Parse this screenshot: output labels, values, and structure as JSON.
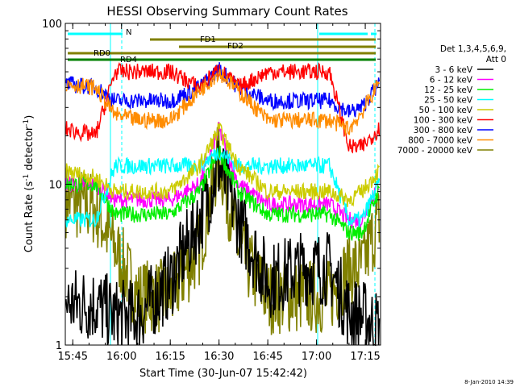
{
  "chart_data": {
    "type": "line",
    "title": "HESSI Observing Summary Count Rates",
    "xlabel": "Start Time (30-Jun-07 15:42:42)",
    "ylabel": "Count Rate (s",
    "ylabel_exp": "-1",
    "ylabel_mid": " detector",
    "ylabel_close": ")",
    "xlim": [
      "15:42:42",
      "17:19:42"
    ],
    "ylim": [
      1,
      100
    ],
    "yscale": "log",
    "xticks": [
      "15:45",
      "16:00",
      "16:15",
      "16:30",
      "16:45",
      "17:00",
      "17:15"
    ],
    "yticks": [
      "1",
      "10",
      "100"
    ],
    "grid": false,
    "legend_position": "right",
    "legend_header": [
      "Det 1,3,4,5,6,9,",
      "Att 0"
    ],
    "series": [
      {
        "name": "3 - 6 keV",
        "color": "#000000",
        "approx_values": [
          1.8,
          1.8,
          1.5,
          1.5,
          2.5,
          6,
          13,
          6,
          2.5,
          3,
          3,
          1.6,
          1.5,
          1.3
        ]
      },
      {
        "name": "6 - 12 keV",
        "color": "#ff00ff",
        "approx_values": [
          10,
          10,
          8,
          8,
          8,
          10,
          22,
          10,
          7.5,
          7.5,
          7.5,
          6,
          6,
          10
        ]
      },
      {
        "name": "12 - 25 keV",
        "color": "#00ee00",
        "approx_values": [
          10,
          10,
          6.5,
          6.5,
          6.5,
          9,
          16,
          9,
          6.5,
          6.5,
          6.5,
          5,
          5,
          9
        ]
      },
      {
        "name": "25 - 50 keV",
        "color": "#00ffff",
        "approx_values": [
          6,
          6,
          13,
          13,
          13,
          13,
          16,
          13,
          13,
          13,
          13,
          6,
          6,
          10
        ]
      },
      {
        "name": "50 - 100 keV",
        "color": "#cccc00",
        "approx_values": [
          12,
          11,
          9,
          9,
          9,
          13,
          22,
          13,
          9,
          9,
          9,
          8,
          9,
          12
        ]
      },
      {
        "name": "100 - 300 keV",
        "color": "#ff0000",
        "approx_values": [
          22,
          20,
          50,
          50,
          50,
          40,
          52,
          40,
          50,
          50,
          50,
          17,
          17,
          22
        ]
      },
      {
        "name": "300 - 800 keV",
        "color": "#0000ff",
        "approx_values": [
          42,
          40,
          33,
          33,
          33,
          40,
          52,
          40,
          33,
          33,
          33,
          28,
          30,
          42
        ]
      },
      {
        "name": "800 - 7000 keV",
        "color": "#ff8c00",
        "approx_values": [
          42,
          40,
          27,
          25,
          25,
          38,
          50,
          38,
          25,
          25,
          25,
          22,
          28,
          42
        ]
      },
      {
        "name": "7000 - 20000 keV",
        "color": "#808000",
        "approx_values": [
          8,
          7,
          4,
          2,
          2,
          4,
          15,
          4,
          2,
          2,
          2,
          3,
          3,
          6
        ]
      }
    ],
    "annotations": [
      {
        "label": "N",
        "color": "#00ffff"
      },
      {
        "label": "FD1",
        "color": "#808000"
      },
      {
        "label": "FD2",
        "color": "#808000"
      },
      {
        "label": "RD0",
        "color": "#808000"
      },
      {
        "label": "RD4",
        "color": "#008000"
      }
    ],
    "footer": "8-Jan-2010 14:39"
  }
}
